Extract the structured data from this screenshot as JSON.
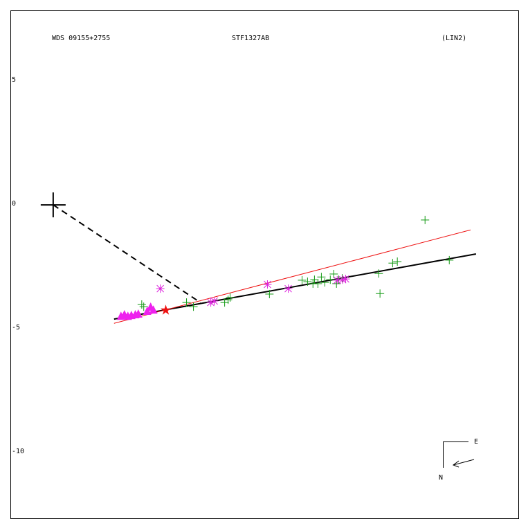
{
  "chart_data": {
    "type": "scatter",
    "header_left": "WDS 09155+2755",
    "title": "STF1327AB",
    "header_right": "(LIN2)",
    "xlim": [
      -1.73,
      18.8
    ],
    "ylim": [
      -12.65,
      7.85
    ],
    "yticks": [
      5,
      0,
      -5,
      -10
    ],
    "grid": false,
    "origin": {
      "x": 0,
      "y": 0
    },
    "series": [
      {
        "marker": "plus",
        "color": "#119911",
        "x": [
          15.03,
          16.01,
          13.72,
          13.91,
          13.16,
          13.21,
          10.06,
          10.28,
          10.56,
          10.7,
          10.84,
          10.98,
          11.2,
          11.34,
          11.45,
          11.54,
          11.68,
          10.5,
          8.74,
          7.07,
          6.93,
          7.15,
          5.67,
          5.39,
          3.66,
          3.58
        ],
        "values": [
          -0.61,
          -2.23,
          -2.35,
          -2.29,
          -2.77,
          -3.58,
          -3.04,
          -3.1,
          -3.02,
          -3.18,
          -2.91,
          -3.13,
          -3.02,
          -2.79,
          -3.18,
          -3.02,
          -2.96,
          -3.18,
          -3.6,
          -3.83,
          -3.94,
          -3.74,
          -4.11,
          -3.94,
          -4.11,
          -4.02
        ]
      },
      {
        "marker": "asterisk",
        "color": "#dd22dd",
        "x": [
          4.33,
          8.66,
          9.5,
          6.37,
          6.51,
          11.48,
          11.7,
          11.82
        ],
        "values": [
          -3.38,
          -3.21,
          -3.38,
          -3.94,
          -3.88,
          -3.04,
          -3.02,
          -2.99
        ]
      },
      {
        "marker": "triangle",
        "color": "#ee22ee",
        "x": [
          2.74,
          2.88,
          3.02,
          3.16,
          3.32,
          3.44,
          3.8,
          3.94,
          4.05
        ],
        "values": [
          -4.5,
          -4.44,
          -4.5,
          -4.47,
          -4.44,
          -4.41,
          -4.3,
          -4.13,
          -4.25
        ]
      },
      {
        "marker": "star",
        "color": "#ee1111",
        "x": [
          4.55
        ],
        "values": [
          -4.25
        ]
      }
    ],
    "lines": [
      {
        "color": "#000000",
        "width": 2,
        "dash": "none",
        "x": [
          2.46,
          17.09
        ],
        "values": [
          -4.61,
          -1.98
        ]
      },
      {
        "color": "#ee1111",
        "width": 1,
        "dash": "none",
        "x": [
          2.46,
          16.87
        ],
        "values": [
          -4.78,
          -1.01
        ]
      },
      {
        "color": "#000000",
        "width": 2,
        "dash": "9 6",
        "x": [
          0,
          5.95
        ],
        "values": [
          0,
          -3.94
        ]
      }
    ],
    "compass": {
      "east": "E",
      "north": "N"
    }
  }
}
